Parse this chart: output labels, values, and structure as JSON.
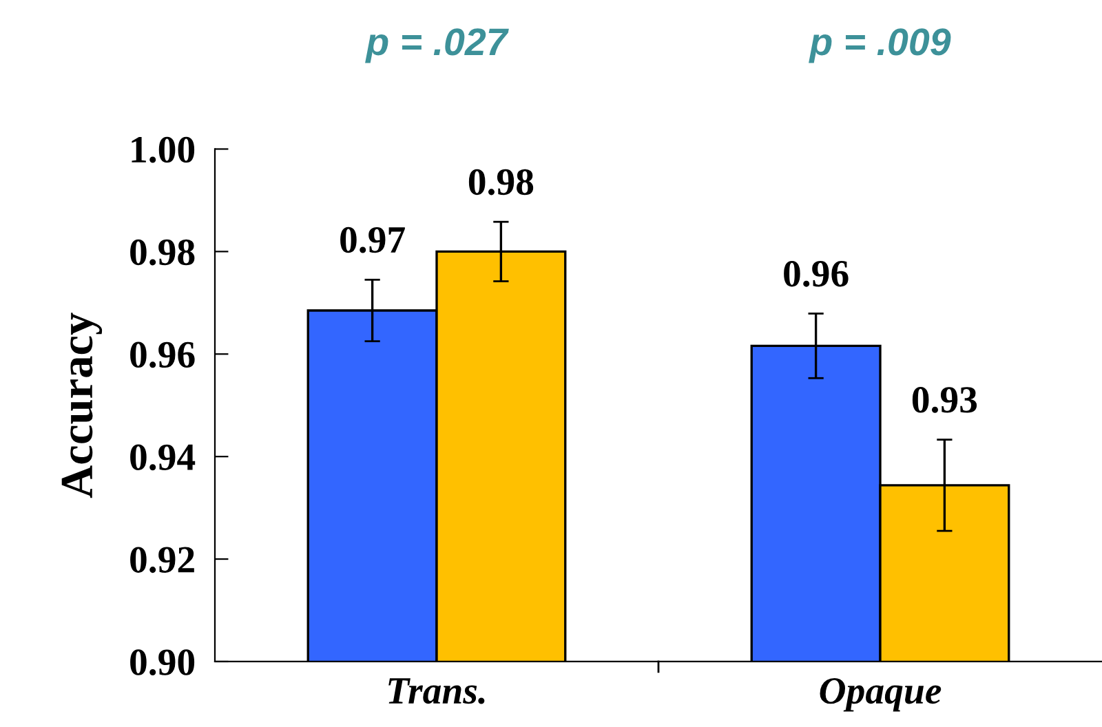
{
  "chart_data": {
    "type": "bar",
    "ylabel": "Accuracy",
    "categories": [
      "Trans.",
      "Opaque"
    ],
    "series": [
      {
        "color": "#3366ff",
        "values": [
          0.9685,
          0.9616
        ],
        "errors": [
          0.006,
          0.0063
        ],
        "value_labels": [
          "0.97",
          "0.96"
        ]
      },
      {
        "color": "#ffc000",
        "values": [
          0.98,
          0.9344
        ],
        "errors": [
          0.0058,
          0.0089
        ],
        "value_labels": [
          "0.98",
          "0.93"
        ]
      }
    ],
    "ylim": [
      0.9,
      1.0
    ],
    "yticks": [
      {
        "value": 0.9,
        "label": "0.90"
      },
      {
        "value": 0.92,
        "label": "0.92"
      },
      {
        "value": 0.94,
        "label": "0.94"
      },
      {
        "value": 0.96,
        "label": "0.96"
      },
      {
        "value": 0.98,
        "label": "0.98"
      },
      {
        "value": 1.0,
        "label": "1.00"
      }
    ],
    "grid": false,
    "legend": false,
    "annotations": [
      "p = .027",
      "p = .009"
    ]
  }
}
